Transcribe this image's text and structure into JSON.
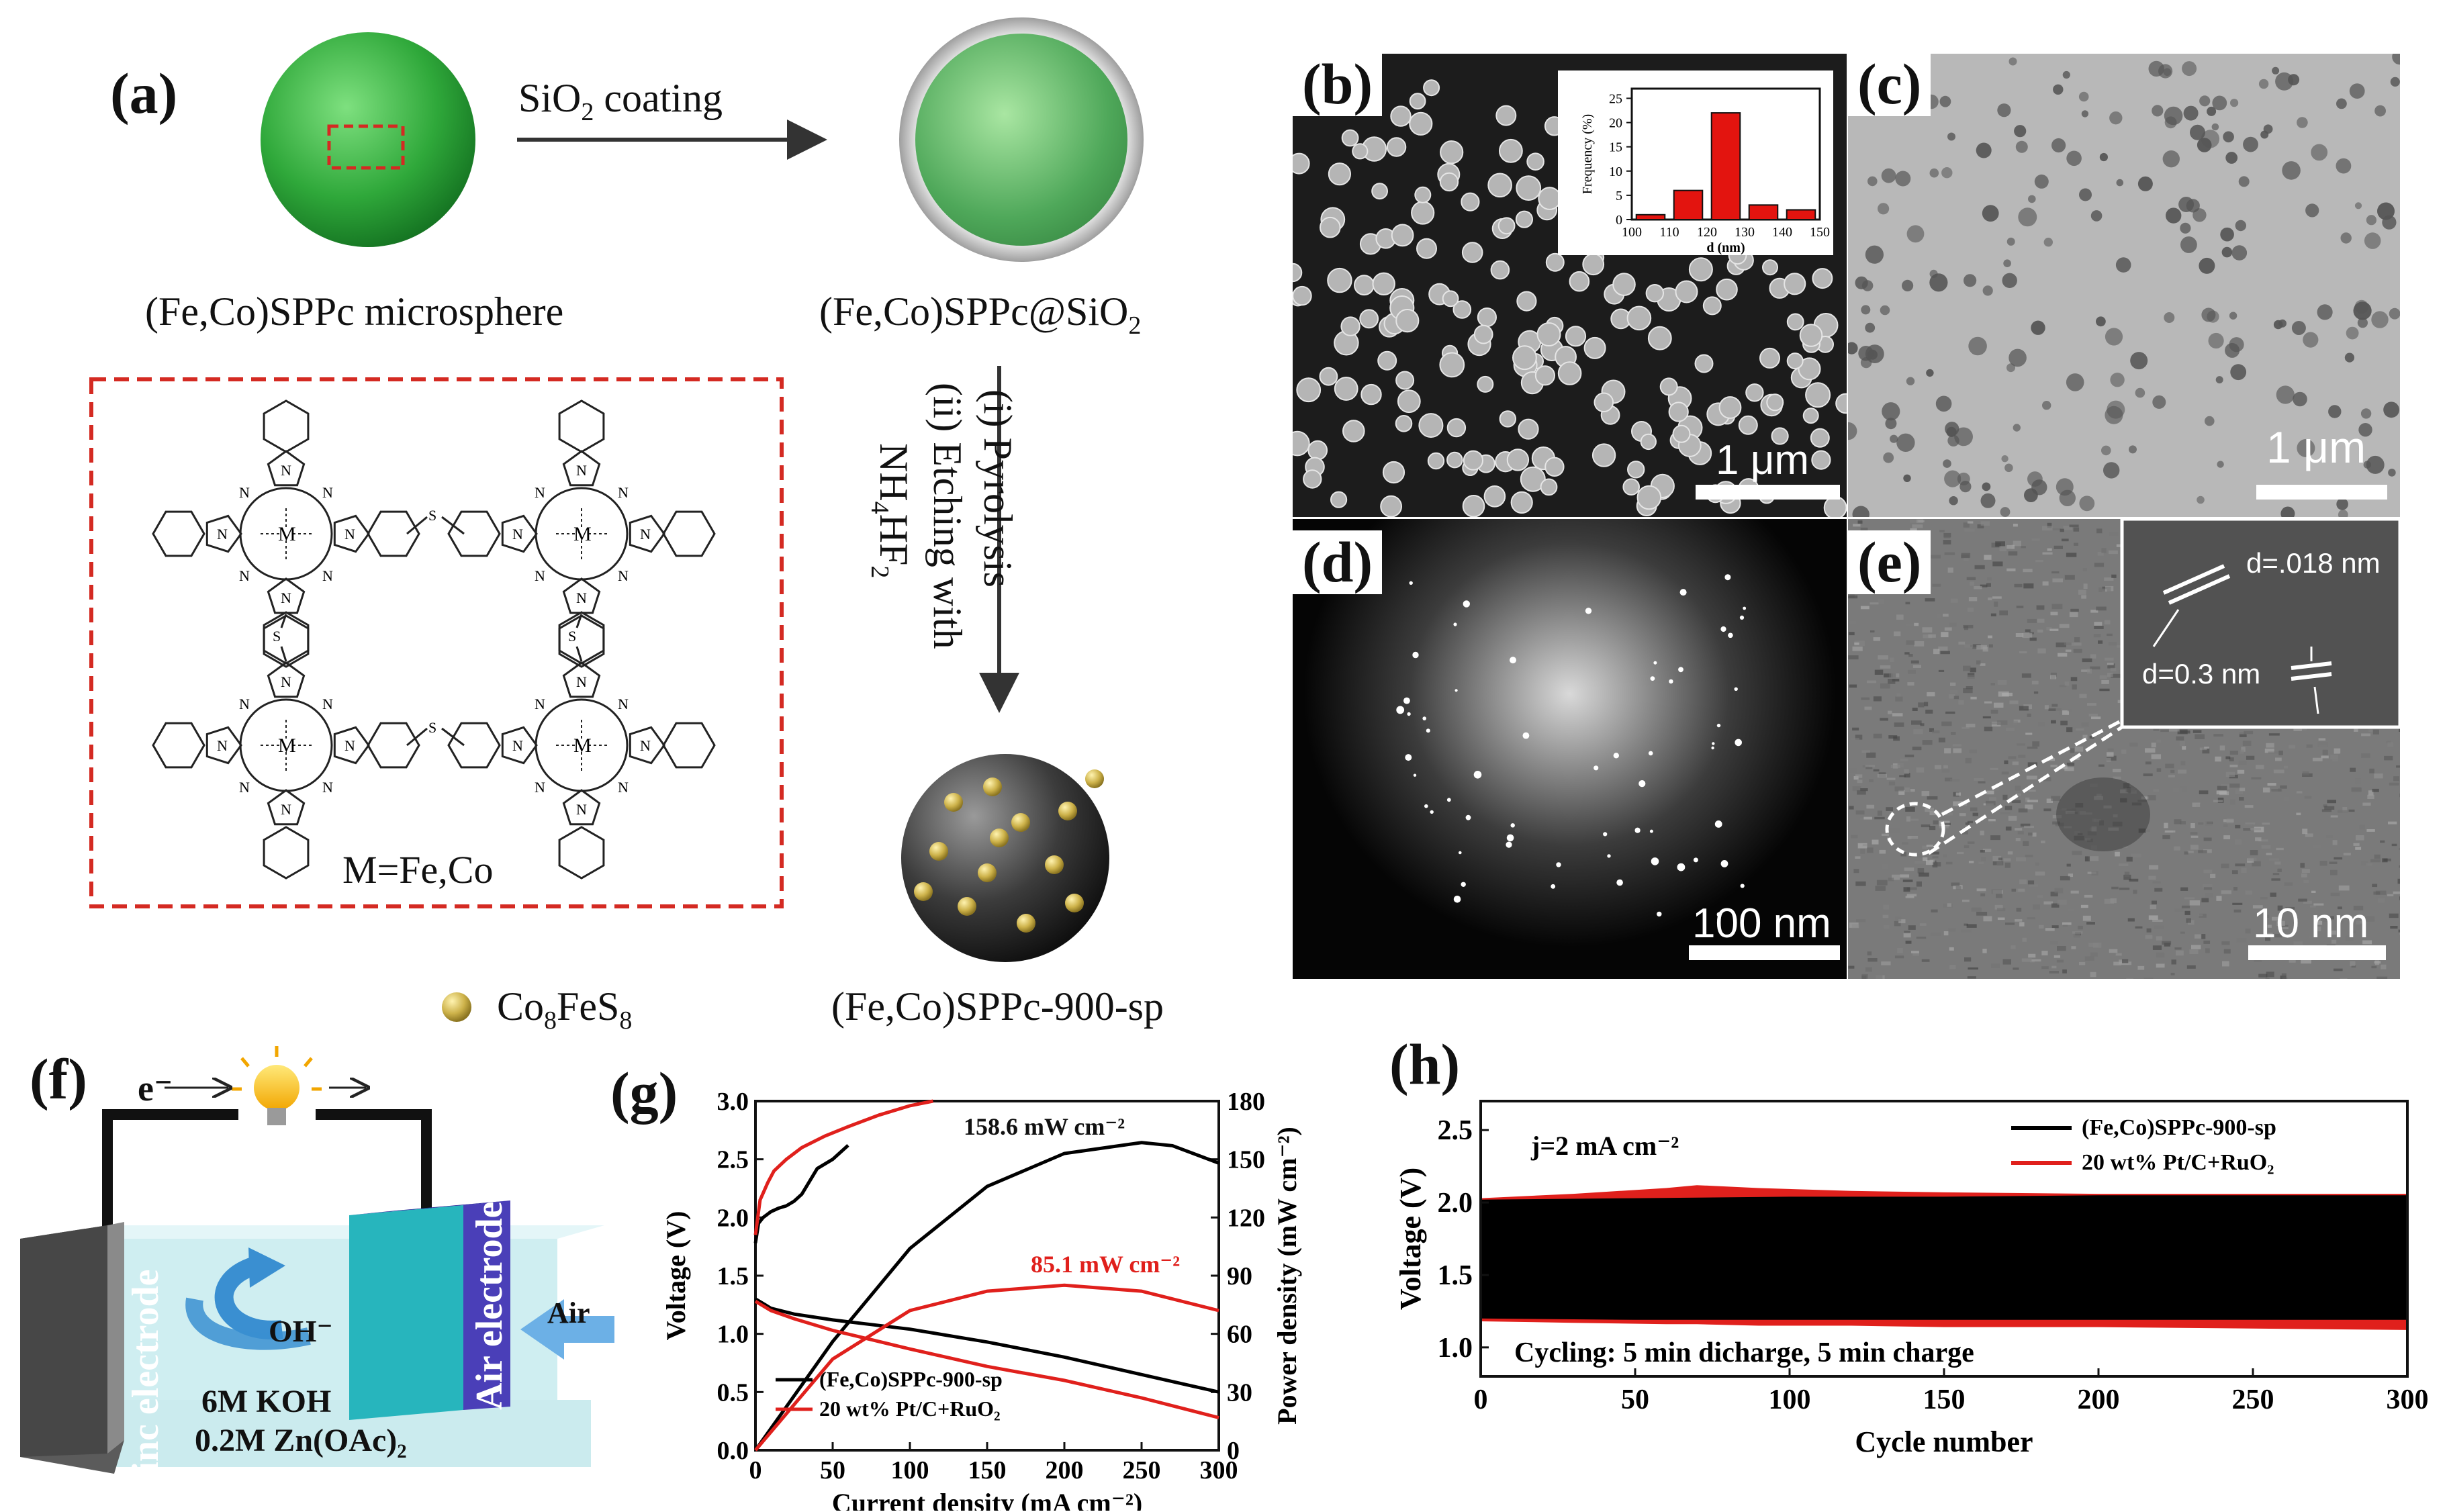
{
  "panels": {
    "a": "(a)",
    "b": "(b)",
    "c": "(c)",
    "d": "(d)",
    "e": "(e)",
    "f": "(f)",
    "g": "(g)",
    "h": "(h)"
  },
  "scheme": {
    "arrow_label_pre": "SiO",
    "arrow_label_sub": "2",
    "arrow_label_post": " coating",
    "label_sphere": "(Fe,Co)SPPc microsphere",
    "label_coated_pre": "(Fe,Co)SPPc@SiO",
    "label_coated_sub": "2",
    "step_i": "(i) Pyrolysis",
    "step_ii": "(ii) Etching with",
    "reagent_pre": "NH",
    "reagent_sub1": "4",
    "reagent_mid": "HF",
    "reagent_sub2": "2",
    "metal_note": "M=Fe,Co",
    "legend_pre": "Co",
    "legend_sub1": "8",
    "legend_mid": "FeS",
    "legend_sub2": "8",
    "label_product": "(Fe,Co)SPPc-900-sp"
  },
  "structure_labels": {
    "metal": "M",
    "nitrogen": "N",
    "sulfur": "S"
  },
  "micrographs": {
    "b": {
      "scale": "1 μm"
    },
    "c": {
      "scale": "1 μm"
    },
    "d": {
      "scale": "100 nm"
    },
    "e": {
      "scale": "10 nm",
      "d1": "d=.018 nm",
      "d2": "d=0.3 nm"
    }
  },
  "battery": {
    "electron": "e⁻",
    "zinc": "Zinc electrode",
    "air_electrode": "Air electrode",
    "air": "Air",
    "oh": "OH⁻",
    "electrolyte1": "6M KOH",
    "electrolyte2": "0.2M Zn(OAc)₂"
  },
  "colors": {
    "black_series": "#000000",
    "red_series": "#e0201c",
    "green_sphere": "#2fa83a",
    "dashed_box": "#d42a22",
    "particle": "#c9b04a"
  },
  "chart_data": [
    {
      "id": "b-inset",
      "type": "bar",
      "xlabel": "d (nm)",
      "ylabel": "Frequency (%)",
      "categories": [
        "100-110",
        "110-120",
        "120-130",
        "130-140",
        "140-150"
      ],
      "values": [
        1,
        6,
        22,
        3,
        2
      ],
      "xticks": [
        "100",
        "110",
        "120",
        "130",
        "140",
        "150"
      ],
      "yticks": [
        "0",
        "5",
        "10",
        "15",
        "20",
        "25"
      ],
      "ylim": [
        0,
        27
      ],
      "color": "#e3140f"
    },
    {
      "id": "g",
      "type": "line",
      "xlabel": "Current density (mA cm⁻²)",
      "ylabel": "Voltage (V)",
      "y2label": "Power density (mW cm⁻²)",
      "xlim": [
        0,
        300
      ],
      "ylim": [
        0,
        3.0
      ],
      "y2lim": [
        0,
        180
      ],
      "xticks": [
        "0",
        "50",
        "100",
        "150",
        "200",
        "250",
        "300"
      ],
      "yticks": [
        "0.0",
        "0.5",
        "1.0",
        "1.5",
        "2.0",
        "2.5",
        "3.0"
      ],
      "y2ticks": [
        "0",
        "30",
        "60",
        "90",
        "120",
        "150",
        "180"
      ],
      "annotations": [
        "158.6 mW cm⁻²",
        "85.1 mW cm⁻²"
      ],
      "series": [
        {
          "name": "(Fe,Co)SPPc-900-sp",
          "axis": "y",
          "kind": "discharge",
          "x": [
            0,
            10,
            25,
            50,
            75,
            100,
            150,
            200,
            250,
            300
          ],
          "y": [
            1.3,
            1.22,
            1.17,
            1.12,
            1.08,
            1.04,
            0.93,
            0.8,
            0.65,
            0.5
          ]
        },
        {
          "name": "(Fe,Co)SPPc-900-sp",
          "axis": "y",
          "kind": "charge",
          "x": [
            0,
            2,
            5,
            10,
            15,
            20,
            25,
            30,
            40,
            50,
            60
          ],
          "y": [
            1.78,
            1.95,
            2.0,
            2.05,
            2.08,
            2.1,
            2.14,
            2.2,
            2.42,
            2.5,
            2.62
          ]
        },
        {
          "name": "(Fe,Co)SPPc-900-sp",
          "axis": "y2",
          "kind": "power",
          "x": [
            0,
            50,
            100,
            150,
            200,
            250,
            270,
            300
          ],
          "y": [
            0,
            56,
            104,
            136,
            153,
            158.6,
            157,
            148
          ]
        },
        {
          "name": "20 wt% Pt/C+RuO₂",
          "axis": "y",
          "kind": "discharge",
          "x": [
            0,
            10,
            25,
            50,
            75,
            100,
            150,
            200,
            250,
            300
          ],
          "y": [
            1.28,
            1.2,
            1.13,
            1.03,
            0.95,
            0.87,
            0.72,
            0.6,
            0.45,
            0.28
          ]
        },
        {
          "name": "20 wt% Pt/C+RuO₂",
          "axis": "y",
          "kind": "charge",
          "x": [
            0,
            3,
            8,
            12,
            20,
            30,
            45,
            60,
            80,
            100,
            115
          ],
          "y": [
            1.85,
            2.15,
            2.3,
            2.4,
            2.5,
            2.6,
            2.7,
            2.78,
            2.88,
            2.96,
            3.0
          ]
        },
        {
          "name": "20 wt% Pt/C+RuO₂",
          "axis": "y2",
          "kind": "power",
          "x": [
            0,
            50,
            100,
            150,
            200,
            250,
            300
          ],
          "y": [
            0,
            47,
            72,
            82,
            85.1,
            82,
            72
          ]
        }
      ]
    },
    {
      "id": "h",
      "type": "area",
      "xlabel": "Cycle number",
      "ylabel": "Voltage (V)",
      "xlim": [
        0,
        300
      ],
      "ylim": [
        0.8,
        2.7
      ],
      "xticks": [
        "0",
        "50",
        "100",
        "150",
        "200",
        "250",
        "300"
      ],
      "yticks": [
        "1.0",
        "1.5",
        "2.0",
        "2.5"
      ],
      "condition": "j=2 mA cm⁻²",
      "note": "Cycling: 5 min dicharge, 5 min charge",
      "series": [
        {
          "name": "(Fe,Co)SPPc-900-sp",
          "x": [
            0,
            50,
            100,
            150,
            200,
            250,
            300
          ],
          "upper": [
            2.02,
            2.03,
            2.04,
            2.04,
            2.05,
            2.05,
            2.05
          ],
          "lower": [
            1.2,
            1.19,
            1.19,
            1.19,
            1.19,
            1.19,
            1.19
          ]
        },
        {
          "name": "20 wt% Pt/C+RuO₂",
          "x": [
            0,
            30,
            60,
            70,
            90,
            120,
            150,
            200,
            250,
            300
          ],
          "upper": [
            2.03,
            2.06,
            2.1,
            2.12,
            2.1,
            2.08,
            2.07,
            2.06,
            2.06,
            2.06
          ],
          "lower": [
            1.18,
            1.17,
            1.16,
            1.16,
            1.15,
            1.15,
            1.14,
            1.14,
            1.13,
            1.12
          ]
        }
      ]
    }
  ]
}
